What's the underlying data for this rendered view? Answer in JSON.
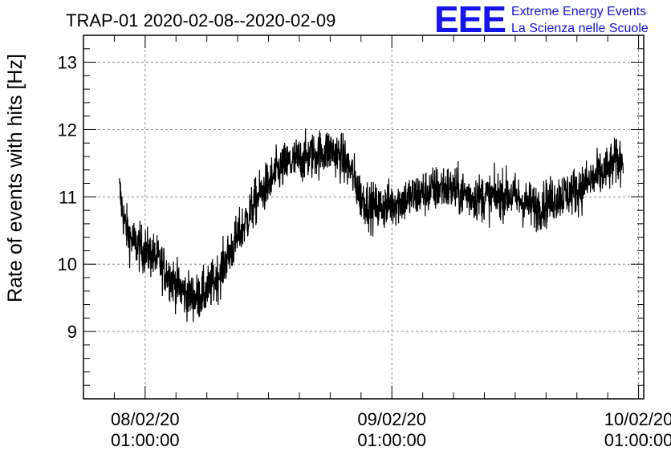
{
  "header": {
    "title": "TRAP-01 2020-02-08--2020-02-09",
    "logo_mark": "EEE",
    "logo_line1": "Extreme Energy Events",
    "logo_line2": "La Scienza nelle Scuole",
    "logo_color": "#1414f0"
  },
  "chart_data": {
    "type": "line",
    "title": "TRAP-01 2020-02-08--2020-02-09",
    "xlabel": "",
    "ylabel": "Rate of events with hits [Hz]",
    "x_unit": "hours since 2020-02-08 01:00:00",
    "xlim": [
      -6,
      48.5
    ],
    "ylim": [
      8,
      13.4
    ],
    "grid": true,
    "line_color": "#000000",
    "x_ticks": [
      {
        "x": 0,
        "line1": "08/02/20",
        "line2": "01:00:00"
      },
      {
        "x": 24,
        "line1": "09/02/20",
        "line2": "01:00:00"
      },
      {
        "x": 48,
        "line1": "10/02/20",
        "line2": "01:00:00"
      }
    ],
    "y_ticks": [
      9,
      10,
      11,
      12,
      13
    ],
    "series": [
      {
        "x": [
          -2.5,
          -2.0,
          -1.5,
          -1.0,
          0.0,
          1.0,
          2.0,
          3.0,
          4.0,
          5.0,
          6.0,
          7.0,
          8.0,
          9.0,
          10.0,
          11.0,
          12.0,
          13.0,
          14.0,
          15.0,
          16.0,
          17.0,
          18.0,
          19.0,
          20.0,
          21.0,
          22.0,
          23.0,
          24.0,
          25.0,
          26.0,
          27.0,
          28.0,
          29.0,
          30.0,
          31.0,
          32.0,
          33.0,
          34.0,
          35.0,
          36.0,
          37.0,
          38.0,
          39.0,
          40.0,
          41.0,
          42.0,
          43.0,
          44.0,
          45.0,
          46.0,
          46.5
        ],
        "y": [
          11.1,
          10.6,
          10.4,
          10.3,
          10.2,
          10.1,
          9.9,
          9.7,
          9.55,
          9.5,
          9.6,
          9.8,
          10.1,
          10.4,
          10.7,
          11.0,
          11.2,
          11.4,
          11.5,
          11.55,
          11.6,
          11.65,
          11.7,
          11.6,
          11.4,
          11.0,
          10.85,
          10.85,
          10.9,
          10.95,
          11.0,
          11.05,
          11.1,
          11.15,
          11.1,
          11.05,
          11.0,
          11.0,
          11.0,
          11.05,
          11.0,
          10.9,
          10.85,
          10.9,
          11.0,
          11.05,
          11.1,
          11.2,
          11.3,
          11.4,
          11.55,
          11.6
        ],
        "noise_amplitude": 0.6
      }
    ]
  }
}
